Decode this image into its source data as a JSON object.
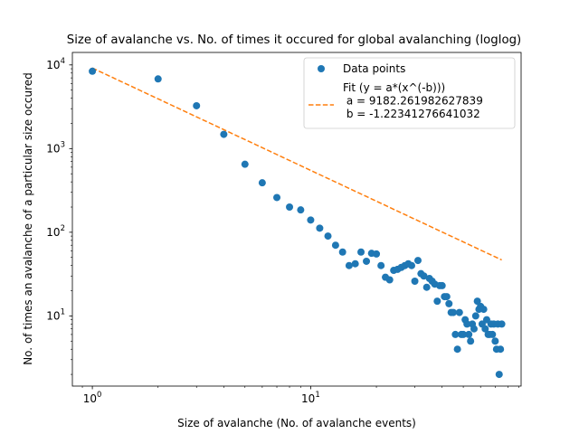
{
  "chart_data": {
    "type": "scatter",
    "title": "Size of avalanche vs. No. of times it occured for global avalanching (loglog)",
    "xlabel": "Size of avalanche (No. of avalanche events)",
    "ylabel": "No. of times an avalanche of a particular size occured",
    "x_scale": "log",
    "y_scale": "log",
    "xlim": [
      0.81,
      92
    ],
    "ylim": [
      1.45,
      14100
    ],
    "x_ticks": [
      {
        "value": 1,
        "base": "10",
        "exp": "0"
      },
      {
        "value": 10,
        "base": "10",
        "exp": "1"
      }
    ],
    "y_ticks": [
      {
        "value": 10,
        "base": "10",
        "exp": "1"
      },
      {
        "value": 100,
        "base": "10",
        "exp": "2"
      },
      {
        "value": 1000,
        "base": "10",
        "exp": "3"
      },
      {
        "value": 10000,
        "base": "10",
        "exp": "4"
      }
    ],
    "legend_position": "top-right",
    "grid": false,
    "series": [
      {
        "name": "Data points",
        "style": "markers",
        "color": "#1f77b4",
        "points": [
          [
            1,
            8400
          ],
          [
            2,
            6800
          ],
          [
            3,
            3250
          ],
          [
            4,
            1480
          ],
          [
            5,
            650
          ],
          [
            6,
            390
          ],
          [
            7,
            260
          ],
          [
            8,
            200
          ],
          [
            9,
            185
          ],
          [
            10,
            140
          ],
          [
            11,
            112
          ],
          [
            12,
            90
          ],
          [
            13,
            70
          ],
          [
            14,
            58
          ],
          [
            15,
            40
          ],
          [
            16,
            42
          ],
          [
            17,
            58
          ],
          [
            18,
            45
          ],
          [
            19,
            56
          ],
          [
            20,
            55
          ],
          [
            21,
            40
          ],
          [
            22,
            29
          ],
          [
            23,
            27
          ],
          [
            24,
            35
          ],
          [
            25,
            36
          ],
          [
            26,
            38
          ],
          [
            27,
            40
          ],
          [
            28,
            42
          ],
          [
            29,
            40
          ],
          [
            30,
            26
          ],
          [
            31,
            46
          ],
          [
            32,
            32
          ],
          [
            33,
            30
          ],
          [
            34,
            22
          ],
          [
            35,
            28
          ],
          [
            36,
            26
          ],
          [
            37,
            24
          ],
          [
            38,
            15
          ],
          [
            39,
            23
          ],
          [
            40,
            23
          ],
          [
            41,
            17
          ],
          [
            42,
            17
          ],
          [
            43,
            14
          ],
          [
            44,
            11
          ],
          [
            45,
            11
          ],
          [
            46,
            6
          ],
          [
            47,
            4
          ],
          [
            48,
            11
          ],
          [
            49,
            6
          ],
          [
            50,
            6
          ],
          [
            51,
            9
          ],
          [
            52,
            8
          ],
          [
            53,
            6
          ],
          [
            54,
            5
          ],
          [
            55,
            8
          ],
          [
            56,
            7
          ],
          [
            57,
            10
          ],
          [
            58,
            15
          ],
          [
            59,
            12
          ],
          [
            60,
            13
          ],
          [
            61,
            8
          ],
          [
            62,
            12
          ],
          [
            63,
            7
          ],
          [
            64,
            9
          ],
          [
            65,
            6
          ],
          [
            66,
            6
          ],
          [
            67,
            8
          ],
          [
            68,
            6
          ],
          [
            69,
            8
          ],
          [
            70,
            5
          ],
          [
            71,
            4
          ],
          [
            72,
            8
          ],
          [
            73,
            2
          ],
          [
            74,
            4
          ],
          [
            75,
            8
          ]
        ]
      },
      {
        "name": "Fit (y = a*(x^(-b)))\n a = 9182.261982627839\n b = -1.22341276641032",
        "style": "dashed-line",
        "color": "#ff7f0e",
        "a": 9182.261982627839,
        "b": -1.22341276641032,
        "x_range": [
          1,
          75
        ]
      }
    ]
  }
}
